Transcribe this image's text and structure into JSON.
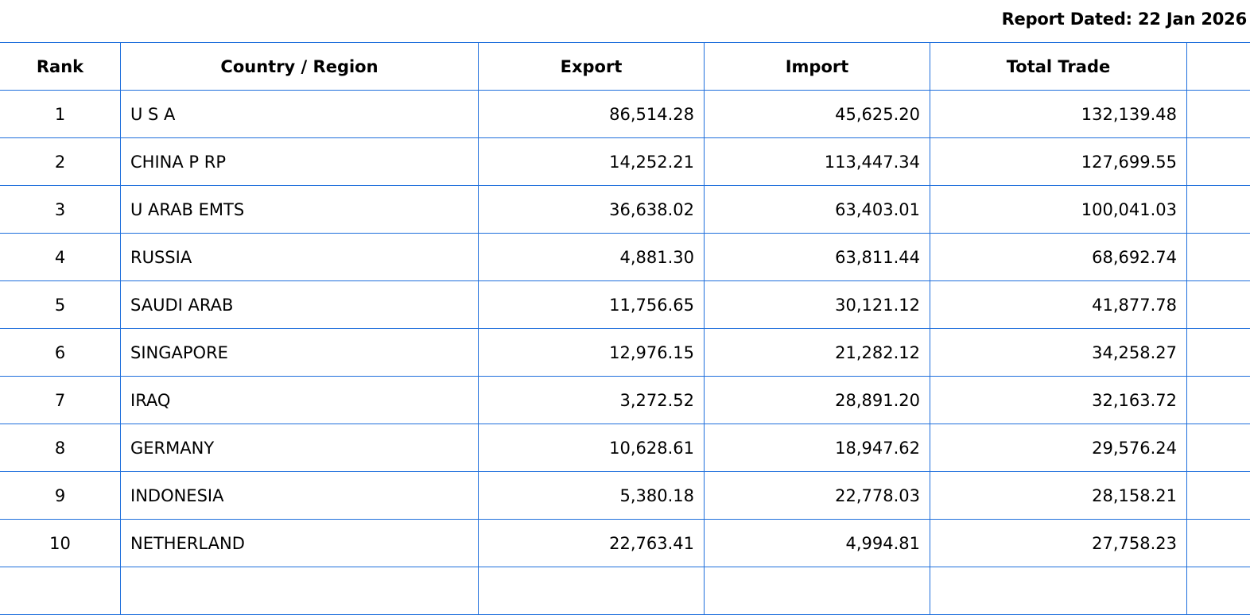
{
  "report": {
    "dated_label": "Report Dated: 22 Jan 2026"
  },
  "table": {
    "headers": {
      "rank": "Rank",
      "country": "Country / Region",
      "export": "Export",
      "import": "Import",
      "total": "Total Trade",
      "extra": ""
    },
    "rows": [
      {
        "rank": "1",
        "country": "U S A",
        "export": "86,514.28",
        "import": "45,625.20",
        "total": "132,139.48"
      },
      {
        "rank": "2",
        "country": "CHINA P RP",
        "export": "14,252.21",
        "import": "113,447.34",
        "total": "127,699.55"
      },
      {
        "rank": "3",
        "country": "U ARAB EMTS",
        "export": "36,638.02",
        "import": "63,403.01",
        "total": "100,041.03"
      },
      {
        "rank": "4",
        "country": "RUSSIA",
        "export": "4,881.30",
        "import": "63,811.44",
        "total": "68,692.74"
      },
      {
        "rank": "5",
        "country": "SAUDI ARAB",
        "export": "11,756.65",
        "import": "30,121.12",
        "total": "41,877.78"
      },
      {
        "rank": "6",
        "country": "SINGAPORE",
        "export": "12,976.15",
        "import": "21,282.12",
        "total": "34,258.27"
      },
      {
        "rank": "7",
        "country": "IRAQ",
        "export": "3,272.52",
        "import": "28,891.20",
        "total": "32,163.72"
      },
      {
        "rank": "8",
        "country": "GERMANY",
        "export": "10,628.61",
        "import": "18,947.62",
        "total": "29,576.24"
      },
      {
        "rank": "9",
        "country": "INDONESIA",
        "export": "5,380.18",
        "import": "22,778.03",
        "total": "28,158.21"
      },
      {
        "rank": "10",
        "country": "NETHERLAND",
        "export": "22,763.41",
        "import": "4,994.81",
        "total": "27,758.23"
      }
    ]
  },
  "colors": {
    "border": "#1f6fdc",
    "text": "#000000",
    "background": "#ffffff"
  }
}
